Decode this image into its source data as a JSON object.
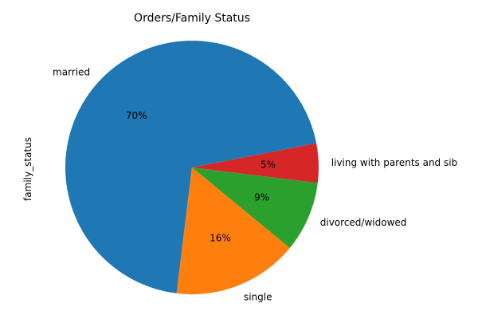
{
  "chart_data": {
    "type": "pie",
    "title": "Orders/Family Status",
    "ylabel": "family_status",
    "slices": [
      {
        "label": "married",
        "value": 70,
        "pct_label": "70%",
        "color": "#1f77b4"
      },
      {
        "label": "single",
        "value": 16,
        "pct_label": "16%",
        "color": "#ff7f0e"
      },
      {
        "label": "divorced/widowed",
        "value": 9,
        "pct_label": "9%",
        "color": "#2ca02c"
      },
      {
        "label": "living with parents and sib",
        "value": 5,
        "pct_label": "5%",
        "color": "#d62728"
      }
    ],
    "start_angle_deg": 11,
    "direction": "counterclockwise"
  }
}
